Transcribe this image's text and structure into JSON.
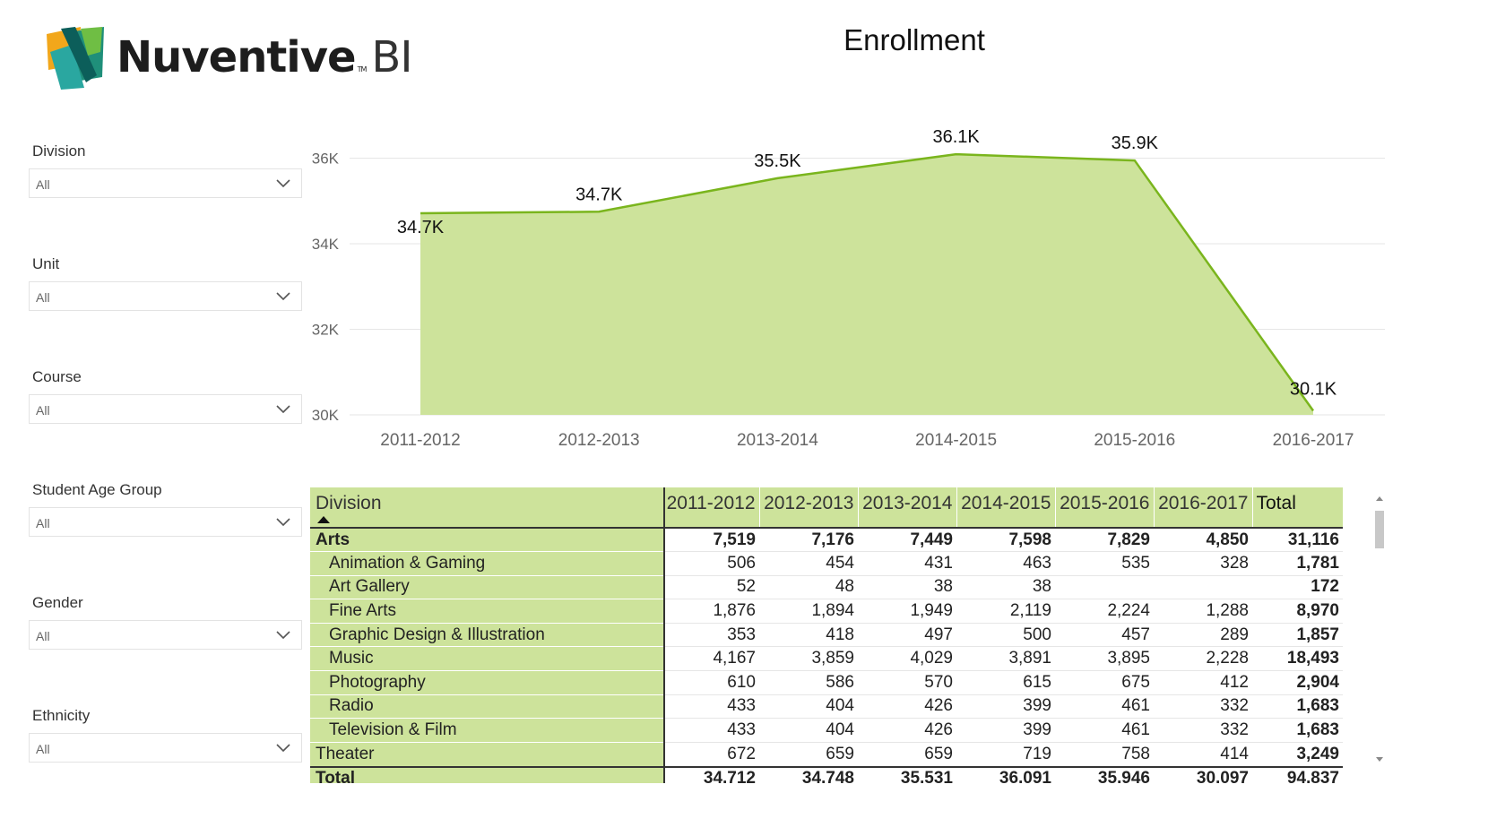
{
  "logo": {
    "name": "Nuventive",
    "tm": "TM",
    "suffix": "BI"
  },
  "title": "Enrollment",
  "slicers": [
    {
      "label": "Division",
      "value": "All"
    },
    {
      "label": "Unit",
      "value": "All"
    },
    {
      "label": "Course",
      "value": "All"
    },
    {
      "label": "Student Age Group",
      "value": "All"
    },
    {
      "label": "Gender",
      "value": "All"
    },
    {
      "label": "Ethnicity",
      "value": "All"
    }
  ],
  "colors": {
    "area_fill": "#cde39b",
    "area_line": "#7ab51d",
    "header_bg": "#cde39b"
  },
  "chart_data": {
    "type": "area",
    "categories": [
      "2011-2012",
      "2012-2013",
      "2013-2014",
      "2014-2015",
      "2015-2016",
      "2016-2017"
    ],
    "values": [
      34712,
      34748,
      35531,
      36091,
      35946,
      30097
    ],
    "data_labels": [
      "34.7K",
      "34.7K",
      "35.5K",
      "36.1K",
      "35.9K",
      "30.1K"
    ],
    "y_ticks": [
      "30K",
      "32K",
      "34K",
      "36K"
    ],
    "ylim": [
      30000,
      36200
    ],
    "grid": true,
    "legend": "none"
  },
  "matrix": {
    "header": [
      "Division",
      "2011-2012",
      "2012-2013",
      "2013-2014",
      "2014-2015",
      "2015-2016",
      "2016-2017",
      "Total"
    ],
    "sort": "ascending",
    "rows": [
      {
        "level": "group",
        "cells": [
          "Arts",
          "7,519",
          "7,176",
          "7,449",
          "7,598",
          "7,829",
          "4,850",
          "31,116"
        ]
      },
      {
        "level": "child",
        "cells": [
          "Animation & Gaming",
          "506",
          "454",
          "431",
          "463",
          "535",
          "328",
          "1,781"
        ]
      },
      {
        "level": "child",
        "cells": [
          "Art Gallery",
          "52",
          "48",
          "38",
          "38",
          "",
          "",
          "172"
        ]
      },
      {
        "level": "child",
        "cells": [
          "Fine Arts",
          "1,876",
          "1,894",
          "1,949",
          "2,119",
          "2,224",
          "1,288",
          "8,970"
        ]
      },
      {
        "level": "child",
        "cells": [
          "Graphic Design & Illustration",
          "353",
          "418",
          "497",
          "500",
          "457",
          "289",
          "1,857"
        ]
      },
      {
        "level": "child",
        "cells": [
          "Music",
          "4,167",
          "3,859",
          "4,029",
          "3,891",
          "3,895",
          "2,228",
          "18,493"
        ]
      },
      {
        "level": "child",
        "cells": [
          "Photography",
          "610",
          "586",
          "570",
          "615",
          "675",
          "412",
          "2,904"
        ]
      },
      {
        "level": "child",
        "cells": [
          "Radio",
          "433",
          "404",
          "426",
          "399",
          "461",
          "332",
          "1,683"
        ]
      },
      {
        "level": "child",
        "cells": [
          "Television & Film",
          "433",
          "404",
          "426",
          "399",
          "461",
          "332",
          "1,683"
        ]
      },
      {
        "level": "cut",
        "cells": [
          "Theater",
          "672",
          "659",
          "659",
          "719",
          "758",
          "414",
          "3,249"
        ]
      }
    ],
    "total": [
      "Total",
      "34,712",
      "34,748",
      "35,531",
      "36,091",
      "35,946",
      "30,097",
      "94,837"
    ]
  }
}
